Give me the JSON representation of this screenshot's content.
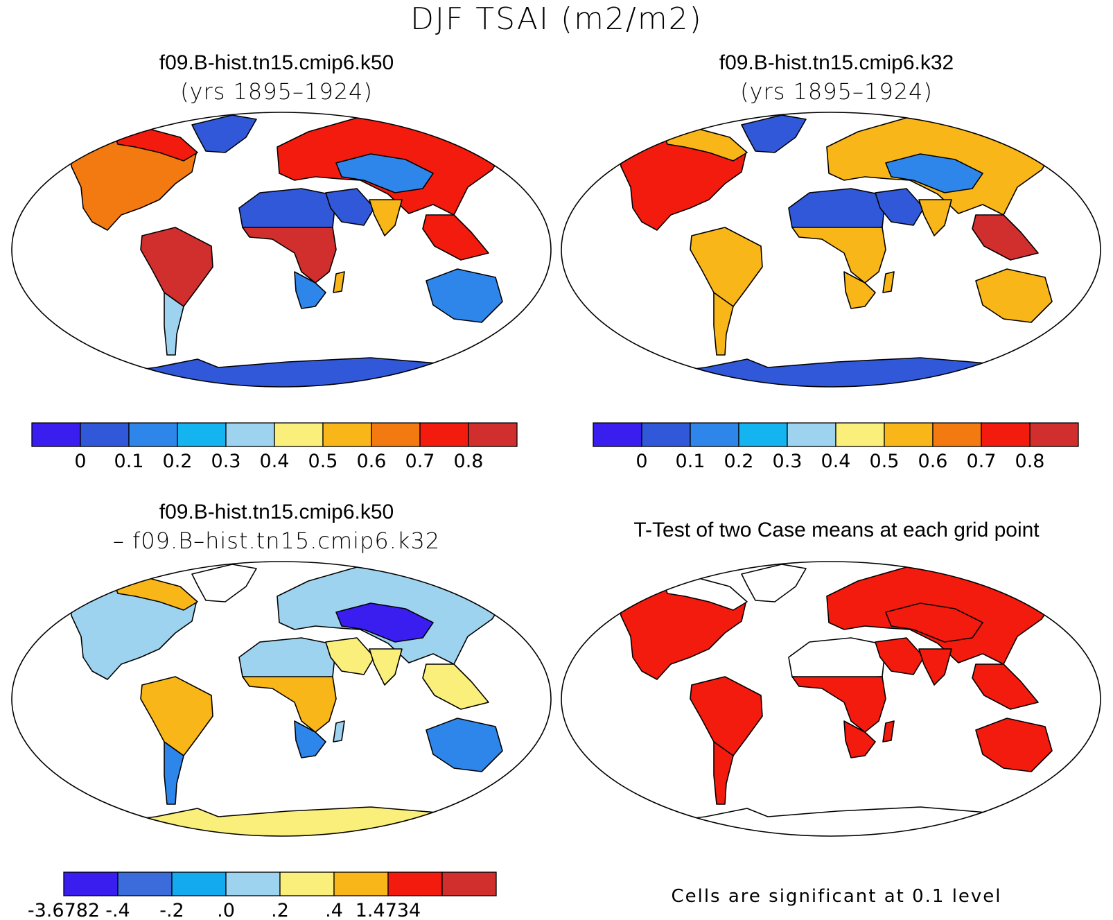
{
  "figure_title": "DJF TSAI (m2/m2)",
  "panels": [
    {
      "title": "f09.B-hist.tn15.cmip6.k50",
      "subtitle": "(yrs 1895–1924)"
    },
    {
      "title": "f09.B-hist.tn15.cmip6.k32",
      "subtitle": "(yrs 1895–1924)"
    },
    {
      "title": "f09.B-hist.tn15.cmip6.k50",
      "subtitle": "– f09.B–hist.tn15.cmip6.k32"
    },
    {
      "title": "T-Test of two Case means at each grid point",
      "subtitle": ""
    }
  ],
  "colorbar_main": {
    "colors": [
      "#3a1ef0",
      "#3158d9",
      "#2f86ea",
      "#14b4f0",
      "#9dd3ef",
      "#fbef7c",
      "#f8b619",
      "#f37a10",
      "#f31a0e",
      "#d12e2e"
    ],
    "labels": [
      "0",
      "0.1",
      "0.2",
      "0.3",
      "0.4",
      "0.5",
      "0.6",
      "0.7",
      "0.8"
    ]
  },
  "colorbar_diff": {
    "colors": [
      "#3a1ef0",
      "#3c6bdc",
      "#14aaef",
      "#9dd3ef",
      "#fbef7c",
      "#f8b619",
      "#f31a0e",
      "#d12e2e"
    ],
    "labels": [
      "-3.6782",
      "-.4",
      "-.2",
      ".0",
      ".2",
      ".4",
      "1.4734"
    ]
  },
  "significance_note": "Cells are significant at 0.1 level",
  "region_colors": {
    "panel1": {
      "namerica": "#f37a10",
      "canada": "#f31a0e",
      "greenland": "#3158d9",
      "samerica": "#d12e2e",
      "patagonia": "#9dd3ef",
      "sahara": "#3158d9",
      "arabia": "#3158d9",
      "africa_trop": "#d12e2e",
      "africa_south": "#2f86ea",
      "eurasia": "#f31a0e",
      "centralasia": "#2f86ea",
      "india": "#f8b619",
      "seasia": "#f31a0e",
      "australia": "#2f86ea",
      "antarctica": "#3158d9",
      "madagascar": "#f8b619"
    },
    "panel2": {
      "namerica": "#f31a0e",
      "canada": "#f8b619",
      "greenland": "#3158d9",
      "samerica": "#f8b619",
      "patagonia": "#f8b619",
      "sahara": "#3158d9",
      "arabia": "#3158d9",
      "africa_trop": "#f8b619",
      "africa_south": "#f8b619",
      "eurasia": "#f8b619",
      "centralasia": "#2f86ea",
      "india": "#f8b619",
      "seasia": "#d12e2e",
      "australia": "#f8b619",
      "antarctica": "#3158d9",
      "madagascar": "#f8b619"
    },
    "panel3": {
      "namerica": "#9dd3ef",
      "canada": "#f8b619",
      "greenland": "#ffffff",
      "samerica": "#f8b619",
      "patagonia": "#2f86ea",
      "sahara": "#9dd3ef",
      "arabia": "#fbef7c",
      "africa_trop": "#f8b619",
      "africa_south": "#2f86ea",
      "eurasia": "#9dd3ef",
      "centralasia": "#3a1ef0",
      "india": "#fbef7c",
      "seasia": "#fbef7c",
      "australia": "#2f86ea",
      "antarctica": "#fbef7c",
      "madagascar": "#9dd3ef"
    },
    "panel4": {
      "namerica": "#f31a0e",
      "canada": "#ffffff",
      "greenland": "#ffffff",
      "samerica": "#f31a0e",
      "patagonia": "#f31a0e",
      "sahara": "#ffffff",
      "arabia": "#f31a0e",
      "africa_trop": "#f31a0e",
      "africa_south": "#f31a0e",
      "eurasia": "#f31a0e",
      "centralasia": "#f31a0e",
      "india": "#f31a0e",
      "seasia": "#f31a0e",
      "australia": "#f31a0e",
      "antarctica": "#ffffff",
      "madagascar": "#f31a0e"
    }
  }
}
